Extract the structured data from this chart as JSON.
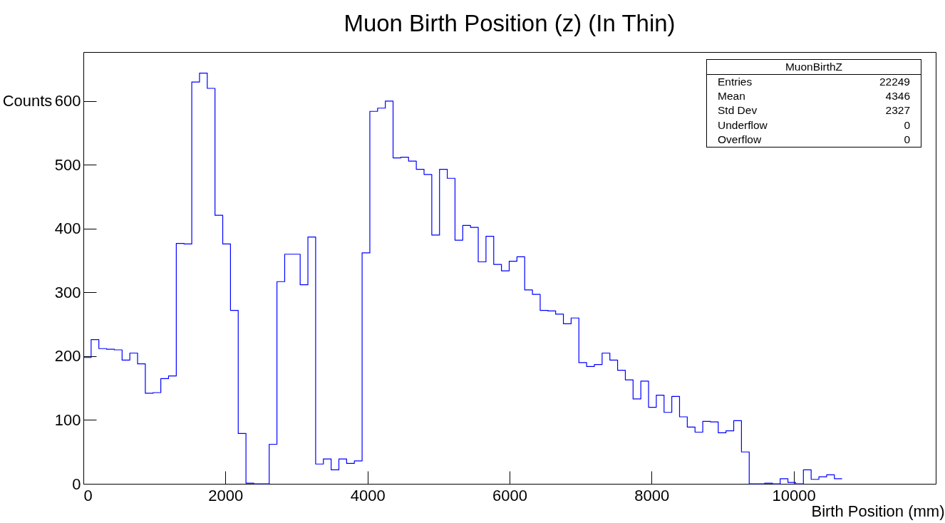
{
  "chart_data": {
    "type": "histogram",
    "title": "Muon Birth Position (z) (In Thin)",
    "xlabel": "Birth Position (mm)",
    "ylabel": "Counts",
    "bins": [
      0,
      109,
      218,
      327,
      436,
      545,
      654,
      763,
      872,
      981,
      1090,
      1199,
      1308,
      1417,
      1526,
      1635,
      1744,
      1853,
      1962,
      2071,
      2180,
      2289,
      2398,
      2507,
      2616,
      2725,
      2834,
      2943,
      3052,
      3161,
      3270,
      3379,
      3488,
      3597,
      3706,
      3815,
      3924,
      4033,
      4142,
      4251,
      4360,
      4469,
      4578,
      4687,
      4796,
      4905,
      5014,
      5123,
      5232,
      5341,
      5450,
      5559,
      5668,
      5777,
      5886,
      5995,
      6104,
      6213,
      6322,
      6431,
      6540,
      6649,
      6758,
      6867,
      6976,
      7085,
      7194,
      7303,
      7412,
      7521,
      7630,
      7739,
      7848,
      7957,
      8066,
      8175,
      8284,
      8393,
      8502,
      8611,
      8720,
      8829,
      8938,
      9047,
      9156,
      9265,
      9374,
      9483,
      9592,
      9701,
      9810,
      9919,
      10028,
      10137,
      10246,
      10355,
      10464,
      10573,
      10682
    ],
    "values": [
      198,
      226,
      212,
      211,
      210,
      194,
      205,
      188,
      142,
      143,
      165,
      169,
      377,
      376,
      630,
      644,
      620,
      421,
      376,
      272,
      79,
      1,
      0,
      0,
      62,
      317,
      360,
      360,
      312,
      387,
      31,
      39,
      22,
      39,
      32,
      36,
      362,
      584,
      589,
      600,
      511,
      512,
      506,
      493,
      485,
      390,
      493,
      479,
      382,
      405,
      402,
      348,
      388,
      344,
      334,
      349,
      356,
      304,
      297,
      272,
      271,
      266,
      251,
      260,
      190,
      184,
      187,
      205,
      194,
      178,
      163,
      133,
      161,
      120,
      139,
      112,
      137,
      105,
      89,
      81,
      98,
      97,
      80,
      83,
      99,
      50,
      0,
      0,
      1,
      0,
      8,
      2,
      0,
      22,
      7,
      11,
      14,
      8
    ],
    "color": "#0000ff",
    "xlim": [
      0,
      12000
    ],
    "ylim": [
      0,
      677
    ],
    "xticks": [
      0,
      2000,
      4000,
      6000,
      8000,
      10000
    ],
    "yticks": [
      0,
      100,
      200,
      300,
      400,
      500,
      600
    ],
    "grid": false,
    "annotations": [
      "MuonBirthZ",
      "Entries 22249",
      "Mean 4346",
      "Std Dev 2327",
      "Underflow 0",
      "Overflow 0"
    ]
  }
}
